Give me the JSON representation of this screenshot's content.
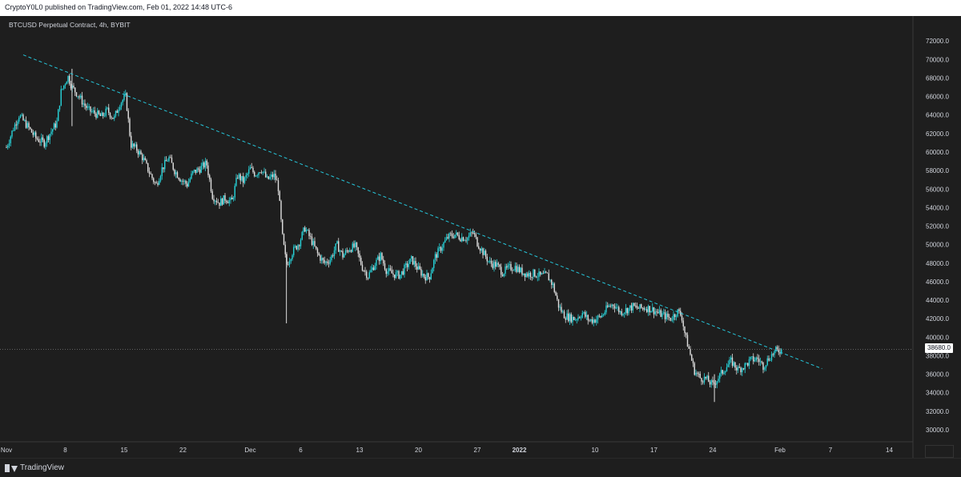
{
  "header": {
    "published_line": "CryptoY0L0 published on TradingView.com, Feb 01, 2022 14:48 UTC-6"
  },
  "chart": {
    "symbol_line": "BTCUSD Perpetual Contract, 4h, BYBIT",
    "last_price_label": "38680.0"
  },
  "footer": {
    "brand": "TradingView",
    "brand_icon": "tradingview-logo-icon"
  },
  "colors": {
    "background": "#1e1e1e",
    "up_candle": "#26d3d9",
    "down_candle": "#e0e0e0",
    "trendline": "#26c6da",
    "axis_text": "#d1d4dc"
  },
  "chart_data": {
    "type": "candlestick",
    "title": "BTCUSD Perpetual Contract, 4h, BYBIT",
    "y_ticks": [
      30000,
      32000,
      34000,
      36000,
      38000,
      40000,
      42000,
      44000,
      46000,
      48000,
      50000,
      52000,
      54000,
      56000,
      58000,
      60000,
      62000,
      64000,
      66000,
      68000,
      70000,
      72000
    ],
    "y_tick_labels": [
      "30000.0",
      "32000.0",
      "34000.0",
      "36000.0",
      "38000.0",
      "40000.0",
      "42000.0",
      "44000.0",
      "46000.0",
      "48000.0",
      "50000.0",
      "52000.0",
      "54000.0",
      "56000.0",
      "58000.0",
      "60000.0",
      "62000.0",
      "64000.0",
      "66000.0",
      "68000.0",
      "70000.0",
      "72000.0"
    ],
    "ylim": [
      28700,
      74700
    ],
    "xlim_days": [
      0.2,
      98
    ],
    "x_ticks": [
      {
        "label": "Nov",
        "day": 1
      },
      {
        "label": "8",
        "day": 8
      },
      {
        "label": "15",
        "day": 15
      },
      {
        "label": "22",
        "day": 22
      },
      {
        "label": "Dec",
        "day": 30
      },
      {
        "label": "6",
        "day": 36
      },
      {
        "label": "13",
        "day": 43
      },
      {
        "label": "20",
        "day": 50
      },
      {
        "label": "27",
        "day": 57
      },
      {
        "label": "2022",
        "day": 62
      },
      {
        "label": "10",
        "day": 71
      },
      {
        "label": "17",
        "day": 78
      },
      {
        "label": "24",
        "day": 85
      },
      {
        "label": "Feb",
        "day": 93
      },
      {
        "label": "7",
        "day": 99
      },
      {
        "label": "14",
        "day": 106
      }
    ],
    "price_path": [
      [
        1,
        60500
      ],
      [
        1.8,
        62500
      ],
      [
        2.5,
        64000
      ],
      [
        3.5,
        62800
      ],
      [
        4.5,
        61500
      ],
      [
        5.5,
        61000
      ],
      [
        6.3,
        62200
      ],
      [
        7,
        63200
      ],
      [
        7.5,
        66500
      ],
      [
        8.3,
        68200
      ],
      [
        8.8,
        67000
      ],
      [
        9.5,
        66200
      ],
      [
        10.2,
        65200
      ],
      [
        10.8,
        64500
      ],
      [
        11.5,
        64200
      ],
      [
        12.3,
        63800
      ],
      [
        13,
        64500
      ],
      [
        13.8,
        63600
      ],
      [
        14.5,
        65300
      ],
      [
        15.2,
        66000
      ],
      [
        15.8,
        60800
      ],
      [
        16.5,
        60300
      ],
      [
        17.2,
        59400
      ],
      [
        18,
        57800
      ],
      [
        18.8,
        56400
      ],
      [
        19.5,
        58200
      ],
      [
        20.3,
        59400
      ],
      [
        21,
        58000
      ],
      [
        21.8,
        57000
      ],
      [
        22.5,
        56500
      ],
      [
        23.2,
        57800
      ],
      [
        24,
        58200
      ],
      [
        24.8,
        58800
      ],
      [
        25.5,
        55300
      ],
      [
        26.3,
        54500
      ],
      [
        27,
        55000
      ],
      [
        27.8,
        54600
      ],
      [
        28.5,
        57500
      ],
      [
        29.2,
        56800
      ],
      [
        30,
        58200
      ],
      [
        30.6,
        57600
      ],
      [
        31.3,
        58200
      ],
      [
        32,
        57000
      ],
      [
        32.8,
        57500
      ],
      [
        33.3,
        56500
      ],
      [
        33.8,
        51000
      ],
      [
        34.3,
        47800
      ],
      [
        35,
        49200
      ],
      [
        35.8,
        50200
      ],
      [
        36.5,
        51800
      ],
      [
        37.3,
        50400
      ],
      [
        38,
        49000
      ],
      [
        38.8,
        48000
      ],
      [
        39.5,
        48400
      ],
      [
        40.3,
        50000
      ],
      [
        41,
        48800
      ],
      [
        41.8,
        49600
      ],
      [
        42.5,
        49800
      ],
      [
        43.3,
        47600
      ],
      [
        44,
        46600
      ],
      [
        44.8,
        47900
      ],
      [
        45.5,
        48800
      ],
      [
        46.2,
        47200
      ],
      [
        47,
        46800
      ],
      [
        47.8,
        46700
      ],
      [
        48.5,
        47600
      ],
      [
        49.2,
        48400
      ],
      [
        50,
        47300
      ],
      [
        50.7,
        46600
      ],
      [
        51.3,
        46500
      ],
      [
        52,
        48700
      ],
      [
        52.7,
        49700
      ],
      [
        53.5,
        50800
      ],
      [
        54.3,
        51100
      ],
      [
        55,
        50800
      ],
      [
        55.8,
        50700
      ],
      [
        56.5,
        51300
      ],
      [
        57,
        50200
      ],
      [
        57.8,
        49000
      ],
      [
        58.5,
        48000
      ],
      [
        59.3,
        47800
      ],
      [
        60,
        47000
      ],
      [
        60.8,
        47500
      ],
      [
        61.5,
        47600
      ],
      [
        62.2,
        47100
      ],
      [
        63,
        46800
      ],
      [
        63.7,
        46900
      ],
      [
        64.5,
        46600
      ],
      [
        65.3,
        46700
      ],
      [
        66,
        45600
      ],
      [
        66.7,
        43300
      ],
      [
        67.3,
        42400
      ],
      [
        68,
        42100
      ],
      [
        68.7,
        42000
      ],
      [
        69.5,
        42600
      ],
      [
        70.3,
        41800
      ],
      [
        71,
        41900
      ],
      [
        71.8,
        42300
      ],
      [
        72.5,
        43200
      ],
      [
        73.2,
        43600
      ],
      [
        74,
        42700
      ],
      [
        74.8,
        43000
      ],
      [
        75.5,
        43300
      ],
      [
        76.2,
        43100
      ],
      [
        77,
        43200
      ],
      [
        77.8,
        43000
      ],
      [
        78.5,
        42600
      ],
      [
        79.3,
        42300
      ],
      [
        80,
        42000
      ],
      [
        80.8,
        42800
      ],
      [
        81.3,
        42300
      ],
      [
        81.7,
        40300
      ],
      [
        82.2,
        38600
      ],
      [
        82.8,
        36400
      ],
      [
        83.5,
        35600
      ],
      [
        84.2,
        35500
      ],
      [
        85,
        34800
      ],
      [
        85.8,
        35800
      ],
      [
        86.5,
        36700
      ],
      [
        87.2,
        37400
      ],
      [
        88,
        36500
      ],
      [
        88.8,
        36900
      ],
      [
        89.5,
        37500
      ],
      [
        90.3,
        37700
      ],
      [
        91,
        36900
      ],
      [
        91.8,
        37900
      ],
      [
        92.5,
        38500
      ],
      [
        93.2,
        38650
      ]
    ],
    "trendline": {
      "start": [
        3,
        70500
      ],
      "end": [
        98,
        36600
      ]
    },
    "last_price": 38680
  }
}
